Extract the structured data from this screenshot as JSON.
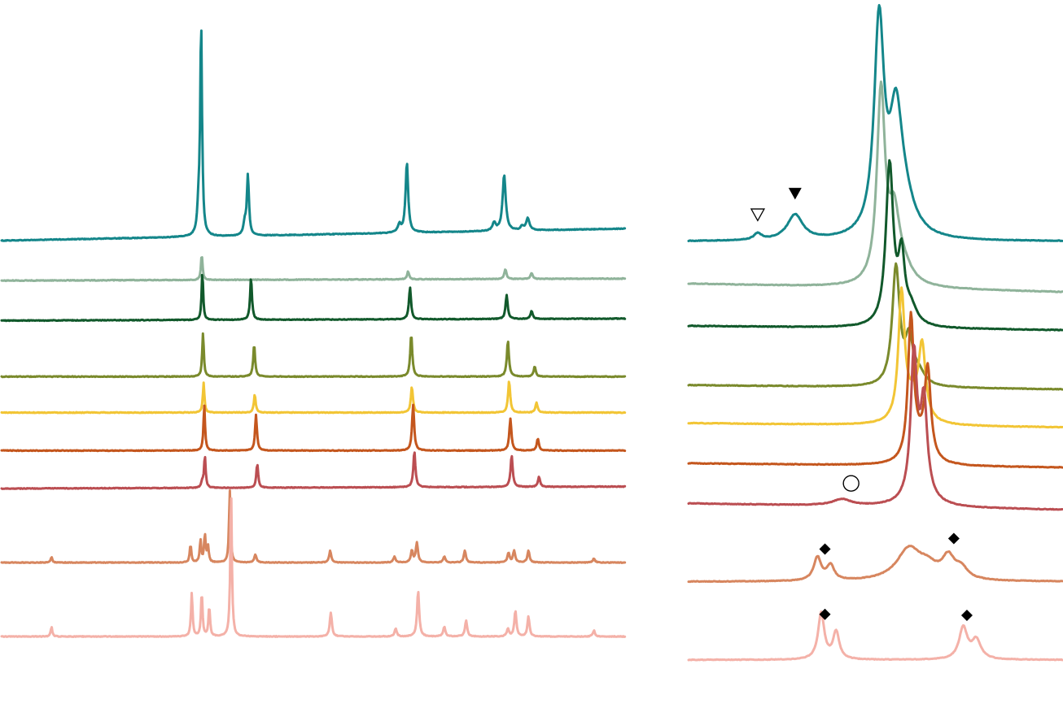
{
  "chart_data": [
    {
      "type": "line",
      "panel": "full-range",
      "title": "",
      "xlabel": "",
      "ylabel": "",
      "xlim": [
        0,
        100
      ],
      "grid": false,
      "legend": "none",
      "series": [
        {
          "color": "#14868a",
          "baseline": 0.0,
          "tilt": 0.6,
          "peaks": [
            [
              32.0,
              10.5,
              0.18
            ],
            [
              31.6,
              1.2,
              0.25
            ],
            [
              39.5,
              3.0,
              0.2
            ],
            [
              39.0,
              0.6,
              0.25
            ],
            [
              65.0,
              3.5,
              0.25
            ],
            [
              63.8,
              0.4,
              0.3
            ],
            [
              80.6,
              2.8,
              0.3
            ],
            [
              79.0,
              0.4,
              0.3
            ],
            [
              84.4,
              0.6,
              0.3
            ],
            [
              83.5,
              0.2,
              0.3
            ]
          ]
        },
        {
          "color": "#8fb39a",
          "baseline": -2.0,
          "tilt": 0.1,
          "peaks": [
            [
              32.1,
              1.3,
              0.15
            ],
            [
              65.2,
              0.4,
              0.2
            ],
            [
              80.8,
              0.5,
              0.2
            ],
            [
              85.0,
              0.3,
              0.2
            ]
          ]
        },
        {
          "color": "#11592b",
          "baseline": -4.0,
          "tilt": 0.1,
          "peaks": [
            [
              32.2,
              2.4,
              0.15
            ],
            [
              40.0,
              2.1,
              0.18
            ],
            [
              65.5,
              1.6,
              0.2
            ],
            [
              81.0,
              1.2,
              0.2
            ],
            [
              85.0,
              0.4,
              0.2
            ]
          ]
        },
        {
          "color": "#7a8a2c",
          "baseline": -6.8,
          "tilt": 0.0,
          "peaks": [
            [
              32.3,
              2.2,
              0.15
            ],
            [
              40.5,
              1.6,
              0.18
            ],
            [
              65.7,
              2.1,
              0.2
            ],
            [
              81.2,
              1.8,
              0.2
            ],
            [
              85.5,
              0.5,
              0.2
            ]
          ]
        },
        {
          "color": "#f2c535",
          "baseline": -8.6,
          "tilt": 0.0,
          "peaks": [
            [
              32.4,
              1.5,
              0.15
            ],
            [
              40.6,
              0.9,
              0.18
            ],
            [
              65.8,
              1.3,
              0.2
            ],
            [
              81.4,
              1.6,
              0.2
            ],
            [
              85.8,
              0.5,
              0.2
            ]
          ]
        },
        {
          "color": "#c4561d",
          "baseline": -10.5,
          "tilt": 0.0,
          "peaks": [
            [
              32.5,
              2.3,
              0.15
            ],
            [
              40.8,
              1.8,
              0.18
            ],
            [
              66.0,
              2.3,
              0.2
            ],
            [
              81.6,
              1.6,
              0.2
            ],
            [
              86.0,
              0.6,
              0.2
            ]
          ]
        },
        {
          "color": "#bb4e52",
          "baseline": -12.4,
          "tilt": 0.1,
          "peaks": [
            [
              32.6,
              1.6,
              0.15
            ],
            [
              32.2,
              0.3,
              0.2
            ],
            [
              41.0,
              1.2,
              0.18
            ],
            [
              66.2,
              1.8,
              0.2
            ],
            [
              81.8,
              1.6,
              0.2
            ],
            [
              86.2,
              0.5,
              0.2
            ]
          ]
        },
        {
          "color": "#d7865f",
          "baseline": -16.1,
          "tilt": 0.0,
          "peaks": [
            [
              8.0,
              0.3,
              0.15
            ],
            [
              30.3,
              0.9,
              0.15
            ],
            [
              31.9,
              1.1,
              0.15
            ],
            [
              32.6,
              1.4,
              0.15
            ],
            [
              33.1,
              0.8,
              0.15
            ],
            [
              36.6,
              3.6,
              0.15
            ],
            [
              40.7,
              0.4,
              0.2
            ],
            [
              52.7,
              0.6,
              0.2
            ],
            [
              63.0,
              0.3,
              0.2
            ],
            [
              65.8,
              0.6,
              0.2
            ],
            [
              66.6,
              1.0,
              0.2
            ],
            [
              71.0,
              0.3,
              0.2
            ],
            [
              74.3,
              0.6,
              0.2
            ],
            [
              81.3,
              0.5,
              0.2
            ],
            [
              82.2,
              0.6,
              0.2
            ],
            [
              84.5,
              0.6,
              0.2
            ],
            [
              95.0,
              0.2,
              0.2
            ]
          ]
        },
        {
          "color": "#f4b1a8",
          "baseline": -19.8,
          "tilt": 0.0,
          "peaks": [
            [
              8.0,
              0.5,
              0.15
            ],
            [
              30.5,
              2.2,
              0.15
            ],
            [
              32.1,
              2.2,
              0.15
            ],
            [
              33.3,
              1.5,
              0.15
            ],
            [
              36.8,
              7.4,
              0.15
            ],
            [
              52.8,
              1.2,
              0.2
            ],
            [
              63.2,
              0.4,
              0.2
            ],
            [
              66.8,
              2.3,
              0.2
            ],
            [
              71.0,
              0.5,
              0.2
            ],
            [
              74.5,
              0.8,
              0.2
            ],
            [
              81.2,
              0.4,
              0.2
            ],
            [
              82.4,
              1.3,
              0.2
            ],
            [
              84.5,
              1.0,
              0.2
            ],
            [
              95.0,
              0.3,
              0.2
            ]
          ]
        }
      ]
    },
    {
      "type": "line",
      "panel": "zoom",
      "title": "",
      "xlabel": "",
      "ylabel": "",
      "xlim": [
        0,
        100
      ],
      "grid": false,
      "legend": "none",
      "series": [
        {
          "color": "#14868a",
          "baseline": 0.0,
          "tilt": 0.0,
          "peaks": [
            [
              18.5,
              0.3,
              1.2
            ],
            [
              28.5,
              1.2,
              2.5
            ],
            [
              51.0,
              10.0,
              1.6
            ],
            [
              55.5,
              5.0,
              2.0
            ],
            [
              57.5,
              1.5,
              3.5
            ]
          ]
        },
        {
          "color": "#8fb39a",
          "baseline": -2.0,
          "tilt": -0.4,
          "peaks": [
            [
              51.5,
              9.0,
              1.3
            ],
            [
              55.0,
              3.0,
              1.8
            ],
            [
              57.5,
              0.7,
              3.0
            ]
          ]
        },
        {
          "color": "#11592b",
          "baseline": -4.0,
          "tilt": -0.2,
          "peaks": [
            [
              53.8,
              7.6,
              1.2
            ],
            [
              57.0,
              3.0,
              1.0
            ],
            [
              59.5,
              0.8,
              2.0
            ]
          ]
        },
        {
          "color": "#7a8a2c",
          "baseline": -6.8,
          "tilt": -0.2,
          "peaks": [
            [
              55.5,
              5.6,
              1.2
            ],
            [
              59.0,
              2.0,
              1.2
            ],
            [
              61.5,
              0.6,
              2.0
            ]
          ]
        },
        {
          "color": "#f2c535",
          "baseline": -8.6,
          "tilt": -0.2,
          "peaks": [
            [
              57.0,
              6.0,
              1.0
            ],
            [
              62.5,
              3.4,
              1.1
            ],
            [
              60.0,
              1.0,
              2.5
            ]
          ]
        },
        {
          "color": "#c4561d",
          "baseline": -10.5,
          "tilt": -0.2,
          "peaks": [
            [
              59.5,
              6.6,
              0.9
            ],
            [
              64.0,
              4.2,
              1.0
            ],
            [
              61.5,
              0.8,
              2.5
            ]
          ]
        },
        {
          "color": "#bb4e52",
          "baseline": -12.4,
          "tilt": -0.3,
          "peaks": [
            [
              41.0,
              0.3,
              3.0
            ],
            [
              60.3,
              6.5,
              1.0
            ],
            [
              63.0,
              4.0,
              1.0
            ],
            [
              62.0,
              1.0,
              3.0
            ]
          ]
        },
        {
          "color": "#d7865f",
          "baseline": -16.1,
          "tilt": 0.0,
          "peaks": [
            [
              34.5,
              1.1,
              1.2
            ],
            [
              38.0,
              0.7,
              1.2
            ],
            [
              59.0,
              1.5,
              4.0
            ],
            [
              64.0,
              0.5,
              3.0
            ],
            [
              69.5,
              1.0,
              2.0
            ],
            [
              73.0,
              0.5,
              2.0
            ]
          ]
        },
        {
          "color": "#f4b1a8",
          "baseline": -19.8,
          "tilt": 0.0,
          "peaks": [
            [
              35.5,
              2.2,
              1.0
            ],
            [
              39.5,
              1.3,
              1.0
            ],
            [
              73.5,
              1.5,
              1.3
            ],
            [
              77.0,
              0.9,
              1.5
            ]
          ]
        }
      ],
      "annotations": [
        {
          "marker": "triangle-down-open",
          "x": 18.5,
          "series": 0
        },
        {
          "marker": "triangle-down-filled",
          "x": 28.5,
          "series": 0
        },
        {
          "marker": "circle-open",
          "x": 43.5,
          "series": 6
        },
        {
          "marker": "diamond-filled",
          "x": 36.5,
          "series": 7
        },
        {
          "marker": "diamond-filled",
          "x": 71.0,
          "series": 7
        },
        {
          "marker": "diamond-filled",
          "x": 36.5,
          "series": 8
        },
        {
          "marker": "diamond-filled",
          "x": 74.5,
          "series": 8
        }
      ]
    }
  ]
}
